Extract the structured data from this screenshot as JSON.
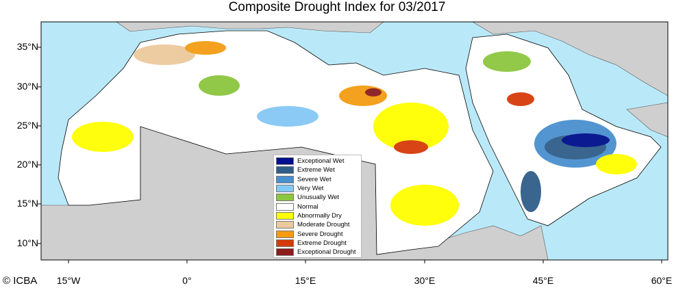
{
  "title": "Composite Drought Index for 03/2017",
  "copyright": "© ICBA",
  "lat_ticks": [
    "35°N",
    "30°N",
    "25°N",
    "20°N",
    "15°N",
    "10°N"
  ],
  "lon_ticks": [
    "15°W",
    "0°",
    "15°E",
    "30°E",
    "45°E",
    "60°E"
  ],
  "legend": [
    {
      "label": "Exceptional Wet",
      "color": "#000e8c"
    },
    {
      "label": "Extreme Wet",
      "color": "#2f5d8a"
    },
    {
      "label": "Severe Wet",
      "color": "#4a90cf"
    },
    {
      "label": "Very Wet",
      "color": "#84c8f5"
    },
    {
      "label": "Unusually Wet",
      "color": "#8cc63f"
    },
    {
      "label": "Normal",
      "color": "#ffffff"
    },
    {
      "label": "Abnormally Dry",
      "color": "#ffff00"
    },
    {
      "label": "Moderate Drought",
      "color": "#ecc99d"
    },
    {
      "label": "Severe Drought",
      "color": "#f39c12"
    },
    {
      "label": "Extreme Drought",
      "color": "#d63a0a"
    },
    {
      "label": "Exceptional Drought",
      "color": "#8b1d1d"
    }
  ],
  "colors": {
    "sea": "#b9e9f9",
    "land_outside": "#cfcfcf"
  }
}
